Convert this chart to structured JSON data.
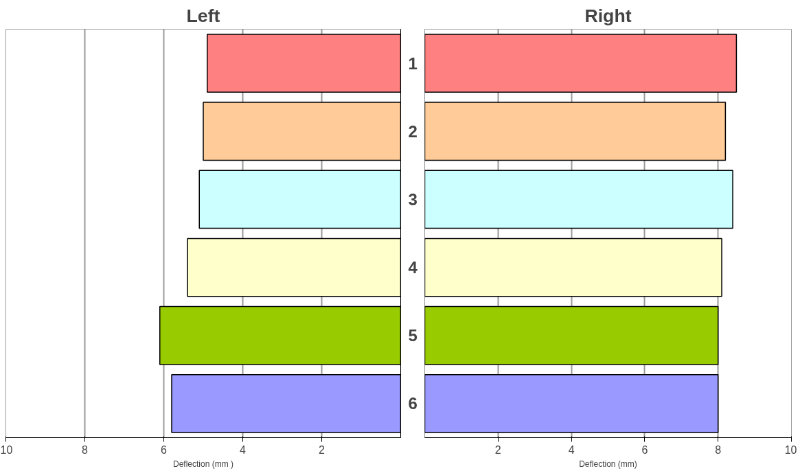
{
  "chart_data": [
    {
      "type": "bar",
      "orientation": "horizontal",
      "title": "Left",
      "xlabel": "Deflection (mm )",
      "categories": [
        "1",
        "2",
        "3",
        "4",
        "5",
        "6"
      ],
      "values": [
        4.9,
        5.0,
        5.1,
        5.4,
        6.1,
        5.8
      ],
      "colors": [
        "#ff8080",
        "#ffcc99",
        "#ccffff",
        "#ffffcc",
        "#99cc00",
        "#9999ff"
      ],
      "xlim": [
        10,
        0
      ],
      "xticks": [
        10,
        8,
        6,
        4,
        2
      ],
      "grid": "x"
    },
    {
      "type": "bar",
      "orientation": "horizontal",
      "title": "Right",
      "xlabel": "Deflection (mm)",
      "categories": [
        "1",
        "2",
        "3",
        "4",
        "5",
        "6"
      ],
      "values": [
        8.5,
        8.2,
        8.4,
        8.1,
        8.0,
        8.0
      ],
      "colors": [
        "#ff8080",
        "#ffcc99",
        "#ccffff",
        "#ffffcc",
        "#99cc00",
        "#9999ff"
      ],
      "xlim": [
        0,
        10
      ],
      "xticks": [
        2,
        4,
        6,
        8,
        10
      ],
      "grid": "x",
      "tick_labels": "x"
    }
  ]
}
